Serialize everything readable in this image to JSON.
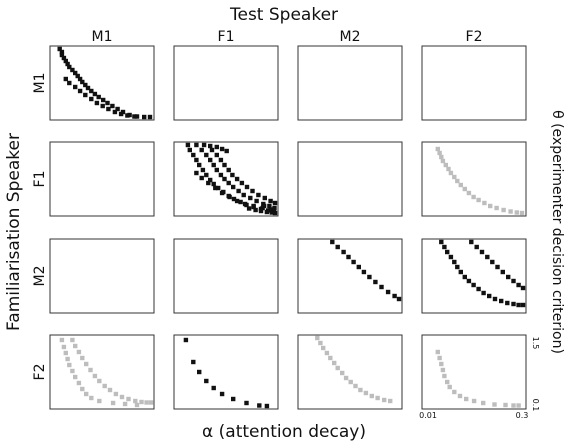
{
  "chart_data": {
    "type": "scatter",
    "title": "Test Speaker",
    "ylabel": "Familiarisation Speaker",
    "xlabel": "α (attention decay)",
    "y2label": "θ (experimenter decision criterion)",
    "columns": [
      "M1",
      "F1",
      "M2",
      "F2"
    ],
    "rows": [
      "M1",
      "F1",
      "M2",
      "F2"
    ],
    "x_ticks": [
      "0.01",
      "0.3"
    ],
    "y_ticks": [
      "1.5",
      "0.1"
    ],
    "xlim": [
      0.01,
      0.3
    ],
    "ylim": [
      0.1,
      1.5
    ],
    "colors": {
      "black": "#111111",
      "grey": "#bdbdbd",
      "frame": "#333333"
    },
    "panels": [
      {
        "row": 0,
        "col": 0,
        "color": "black",
        "points": [
          [
            0.013,
            1.48
          ],
          [
            0.014,
            1.42
          ],
          [
            0.014,
            1.36
          ],
          [
            0.015,
            1.3
          ],
          [
            0.016,
            1.24
          ],
          [
            0.017,
            1.18
          ],
          [
            0.018,
            1.12
          ],
          [
            0.02,
            1.06
          ],
          [
            0.022,
            1.0
          ],
          [
            0.024,
            0.94
          ],
          [
            0.026,
            0.88
          ],
          [
            0.028,
            0.82
          ],
          [
            0.031,
            0.76
          ],
          [
            0.034,
            0.7
          ],
          [
            0.038,
            0.64
          ],
          [
            0.043,
            0.58
          ],
          [
            0.049,
            0.52
          ],
          [
            0.057,
            0.46
          ],
          [
            0.066,
            0.4
          ],
          [
            0.078,
            0.34
          ],
          [
            0.093,
            0.28
          ],
          [
            0.112,
            0.22
          ],
          [
            0.14,
            0.16
          ],
          [
            0.18,
            0.13
          ],
          [
            0.23,
            0.12
          ],
          [
            0.28,
            0.12
          ],
          [
            0.016,
            0.88
          ],
          [
            0.018,
            0.8
          ],
          [
            0.022,
            0.72
          ],
          [
            0.026,
            0.64
          ],
          [
            0.031,
            0.56
          ],
          [
            0.038,
            0.48
          ],
          [
            0.046,
            0.4
          ],
          [
            0.056,
            0.34
          ],
          [
            0.068,
            0.28
          ],
          [
            0.085,
            0.22
          ],
          [
            0.105,
            0.18
          ],
          [
            0.13,
            0.15
          ],
          [
            0.165,
            0.13
          ]
        ]
      },
      {
        "row": 1,
        "col": 1,
        "color": "black",
        "points": [
          [
            0.015,
            1.48
          ],
          [
            0.02,
            1.48
          ],
          [
            0.026,
            1.48
          ],
          [
            0.032,
            1.46
          ],
          [
            0.04,
            1.44
          ],
          [
            0.048,
            1.4
          ],
          [
            0.056,
            1.36
          ],
          [
            0.016,
            1.38
          ],
          [
            0.018,
            1.28
          ],
          [
            0.02,
            1.18
          ],
          [
            0.022,
            1.08
          ],
          [
            0.025,
            0.98
          ],
          [
            0.028,
            0.88
          ],
          [
            0.032,
            0.78
          ],
          [
            0.036,
            0.7
          ],
          [
            0.042,
            0.62
          ],
          [
            0.05,
            0.54
          ],
          [
            0.06,
            0.46
          ],
          [
            0.072,
            0.4
          ],
          [
            0.09,
            0.34
          ],
          [
            0.11,
            0.28
          ],
          [
            0.14,
            0.24
          ],
          [
            0.18,
            0.2
          ],
          [
            0.23,
            0.17
          ],
          [
            0.28,
            0.15
          ],
          [
            0.024,
            1.38
          ],
          [
            0.028,
            1.28
          ],
          [
            0.032,
            1.18
          ],
          [
            0.036,
            1.08
          ],
          [
            0.04,
            0.98
          ],
          [
            0.046,
            0.88
          ],
          [
            0.052,
            0.8
          ],
          [
            0.06,
            0.72
          ],
          [
            0.07,
            0.64
          ],
          [
            0.084,
            0.56
          ],
          [
            0.1,
            0.48
          ],
          [
            0.125,
            0.42
          ],
          [
            0.155,
            0.36
          ],
          [
            0.195,
            0.3
          ],
          [
            0.24,
            0.26
          ],
          [
            0.285,
            0.22
          ],
          [
            0.034,
            1.38
          ],
          [
            0.04,
            1.28
          ],
          [
            0.046,
            1.18
          ],
          [
            0.052,
            1.08
          ],
          [
            0.06,
            0.98
          ],
          [
            0.068,
            0.88
          ],
          [
            0.08,
            0.8
          ],
          [
            0.094,
            0.72
          ],
          [
            0.112,
            0.64
          ],
          [
            0.135,
            0.56
          ],
          [
            0.165,
            0.48
          ],
          [
            0.205,
            0.42
          ],
          [
            0.25,
            0.36
          ],
          [
            0.29,
            0.32
          ],
          [
            0.02,
            0.92
          ],
          [
            0.024,
            0.82
          ],
          [
            0.03,
            0.72
          ],
          [
            0.038,
            0.62
          ],
          [
            0.048,
            0.52
          ],
          [
            0.062,
            0.44
          ],
          [
            0.08,
            0.36
          ],
          [
            0.105,
            0.3
          ],
          [
            0.14,
            0.26
          ],
          [
            0.19,
            0.22
          ],
          [
            0.25,
            0.19
          ],
          [
            0.18,
            0.16
          ],
          [
            0.22,
            0.14
          ],
          [
            0.26,
            0.13
          ],
          [
            0.29,
            0.12
          ],
          [
            0.15,
            0.18
          ],
          [
            0.12,
            0.21
          ],
          [
            0.2,
            0.26
          ]
        ]
      },
      {
        "row": 1,
        "col": 3,
        "color": "grey",
        "points": [
          [
            0.016,
            1.4
          ],
          [
            0.017,
            1.32
          ],
          [
            0.018,
            1.24
          ],
          [
            0.019,
            1.16
          ],
          [
            0.021,
            1.08
          ],
          [
            0.023,
            1.0
          ],
          [
            0.025,
            0.92
          ],
          [
            0.028,
            0.84
          ],
          [
            0.031,
            0.76
          ],
          [
            0.035,
            0.68
          ],
          [
            0.04,
            0.6
          ],
          [
            0.046,
            0.52
          ],
          [
            0.054,
            0.44
          ],
          [
            0.064,
            0.38
          ],
          [
            0.078,
            0.32
          ],
          [
            0.095,
            0.26
          ],
          [
            0.118,
            0.22
          ],
          [
            0.15,
            0.18
          ],
          [
            0.19,
            0.15
          ],
          [
            0.235,
            0.13
          ],
          [
            0.28,
            0.12
          ]
        ]
      },
      {
        "row": 2,
        "col": 2,
        "color": "black",
        "points": [
          [
            0.03,
            1.48
          ],
          [
            0.036,
            1.38
          ],
          [
            0.044,
            1.28
          ],
          [
            0.052,
            1.18
          ],
          [
            0.062,
            1.08
          ],
          [
            0.074,
            0.98
          ],
          [
            0.088,
            0.88
          ],
          [
            0.106,
            0.78
          ],
          [
            0.13,
            0.68
          ],
          [
            0.16,
            0.58
          ],
          [
            0.2,
            0.48
          ],
          [
            0.25,
            0.4
          ],
          [
            0.29,
            0.34
          ]
        ]
      },
      {
        "row": 2,
        "col": 3,
        "color": "black",
        "points": [
          [
            0.018,
            1.48
          ],
          [
            0.02,
            1.38
          ],
          [
            0.022,
            1.28
          ],
          [
            0.025,
            1.18
          ],
          [
            0.028,
            1.08
          ],
          [
            0.031,
            0.98
          ],
          [
            0.035,
            0.88
          ],
          [
            0.04,
            0.78
          ],
          [
            0.046,
            0.7
          ],
          [
            0.054,
            0.62
          ],
          [
            0.064,
            0.54
          ],
          [
            0.076,
            0.46
          ],
          [
            0.092,
            0.4
          ],
          [
            0.112,
            0.34
          ],
          [
            0.138,
            0.3
          ],
          [
            0.17,
            0.26
          ],
          [
            0.21,
            0.24
          ],
          [
            0.25,
            0.22
          ],
          [
            0.29,
            0.22
          ],
          [
            0.05,
            1.48
          ],
          [
            0.06,
            1.38
          ],
          [
            0.072,
            1.28
          ],
          [
            0.086,
            1.18
          ],
          [
            0.102,
            1.08
          ],
          [
            0.122,
            0.98
          ],
          [
            0.146,
            0.88
          ],
          [
            0.175,
            0.78
          ],
          [
            0.21,
            0.7
          ],
          [
            0.25,
            0.62
          ],
          [
            0.29,
            0.56
          ]
        ]
      },
      {
        "row": 3,
        "col": 0,
        "color": "grey",
        "points": [
          [
            0.014,
            1.44
          ],
          [
            0.015,
            1.3
          ],
          [
            0.016,
            1.18
          ],
          [
            0.017,
            1.06
          ],
          [
            0.018,
            0.94
          ],
          [
            0.02,
            0.82
          ],
          [
            0.022,
            0.7
          ],
          [
            0.025,
            0.58
          ],
          [
            0.028,
            0.46
          ],
          [
            0.032,
            0.36
          ],
          [
            0.038,
            0.28
          ],
          [
            0.05,
            0.22
          ],
          [
            0.08,
            0.18
          ],
          [
            0.12,
            0.16
          ],
          [
            0.18,
            0.14
          ],
          [
            0.02,
            1.44
          ],
          [
            0.022,
            1.32
          ],
          [
            0.025,
            1.2
          ],
          [
            0.028,
            1.08
          ],
          [
            0.032,
            0.96
          ],
          [
            0.037,
            0.84
          ],
          [
            0.043,
            0.72
          ],
          [
            0.05,
            0.62
          ],
          [
            0.06,
            0.52
          ],
          [
            0.072,
            0.44
          ],
          [
            0.088,
            0.36
          ],
          [
            0.108,
            0.3
          ],
          [
            0.135,
            0.26
          ],
          [
            0.17,
            0.22
          ],
          [
            0.21,
            0.2
          ],
          [
            0.25,
            0.19
          ],
          [
            0.29,
            0.19
          ]
        ]
      },
      {
        "row": 3,
        "col": 1,
        "color": "black",
        "points": [
          [
            0.014,
            1.44
          ],
          [
            0.018,
            1.0
          ],
          [
            0.022,
            0.8
          ],
          [
            0.028,
            0.62
          ],
          [
            0.036,
            0.48
          ],
          [
            0.048,
            0.36
          ],
          [
            0.07,
            0.26
          ],
          [
            0.11,
            0.18
          ],
          [
            0.17,
            0.13
          ],
          [
            0.22,
            0.12
          ]
        ]
      },
      {
        "row": 3,
        "col": 2,
        "color": "grey",
        "points": [
          [
            0.018,
            1.48
          ],
          [
            0.02,
            1.38
          ],
          [
            0.022,
            1.28
          ],
          [
            0.025,
            1.18
          ],
          [
            0.028,
            1.08
          ],
          [
            0.032,
            0.98
          ],
          [
            0.036,
            0.88
          ],
          [
            0.042,
            0.78
          ],
          [
            0.048,
            0.68
          ],
          [
            0.056,
            0.6
          ],
          [
            0.066,
            0.52
          ],
          [
            0.078,
            0.44
          ],
          [
            0.094,
            0.38
          ],
          [
            0.115,
            0.32
          ],
          [
            0.14,
            0.28
          ],
          [
            0.175,
            0.24
          ],
          [
            0.215,
            0.22
          ]
        ]
      },
      {
        "row": 3,
        "col": 3,
        "color": "grey",
        "points": [
          [
            0.016,
            1.2
          ],
          [
            0.017,
            1.08
          ],
          [
            0.018,
            0.96
          ],
          [
            0.019,
            0.84
          ],
          [
            0.02,
            0.72
          ],
          [
            0.022,
            0.6
          ],
          [
            0.024,
            0.5
          ],
          [
            0.028,
            0.4
          ],
          [
            0.034,
            0.32
          ],
          [
            0.042,
            0.26
          ],
          [
            0.055,
            0.22
          ],
          [
            0.075,
            0.18
          ],
          [
            0.11,
            0.15
          ],
          [
            0.16,
            0.14
          ],
          [
            0.21,
            0.13
          ],
          [
            0.25,
            0.13
          ]
        ]
      }
    ]
  }
}
